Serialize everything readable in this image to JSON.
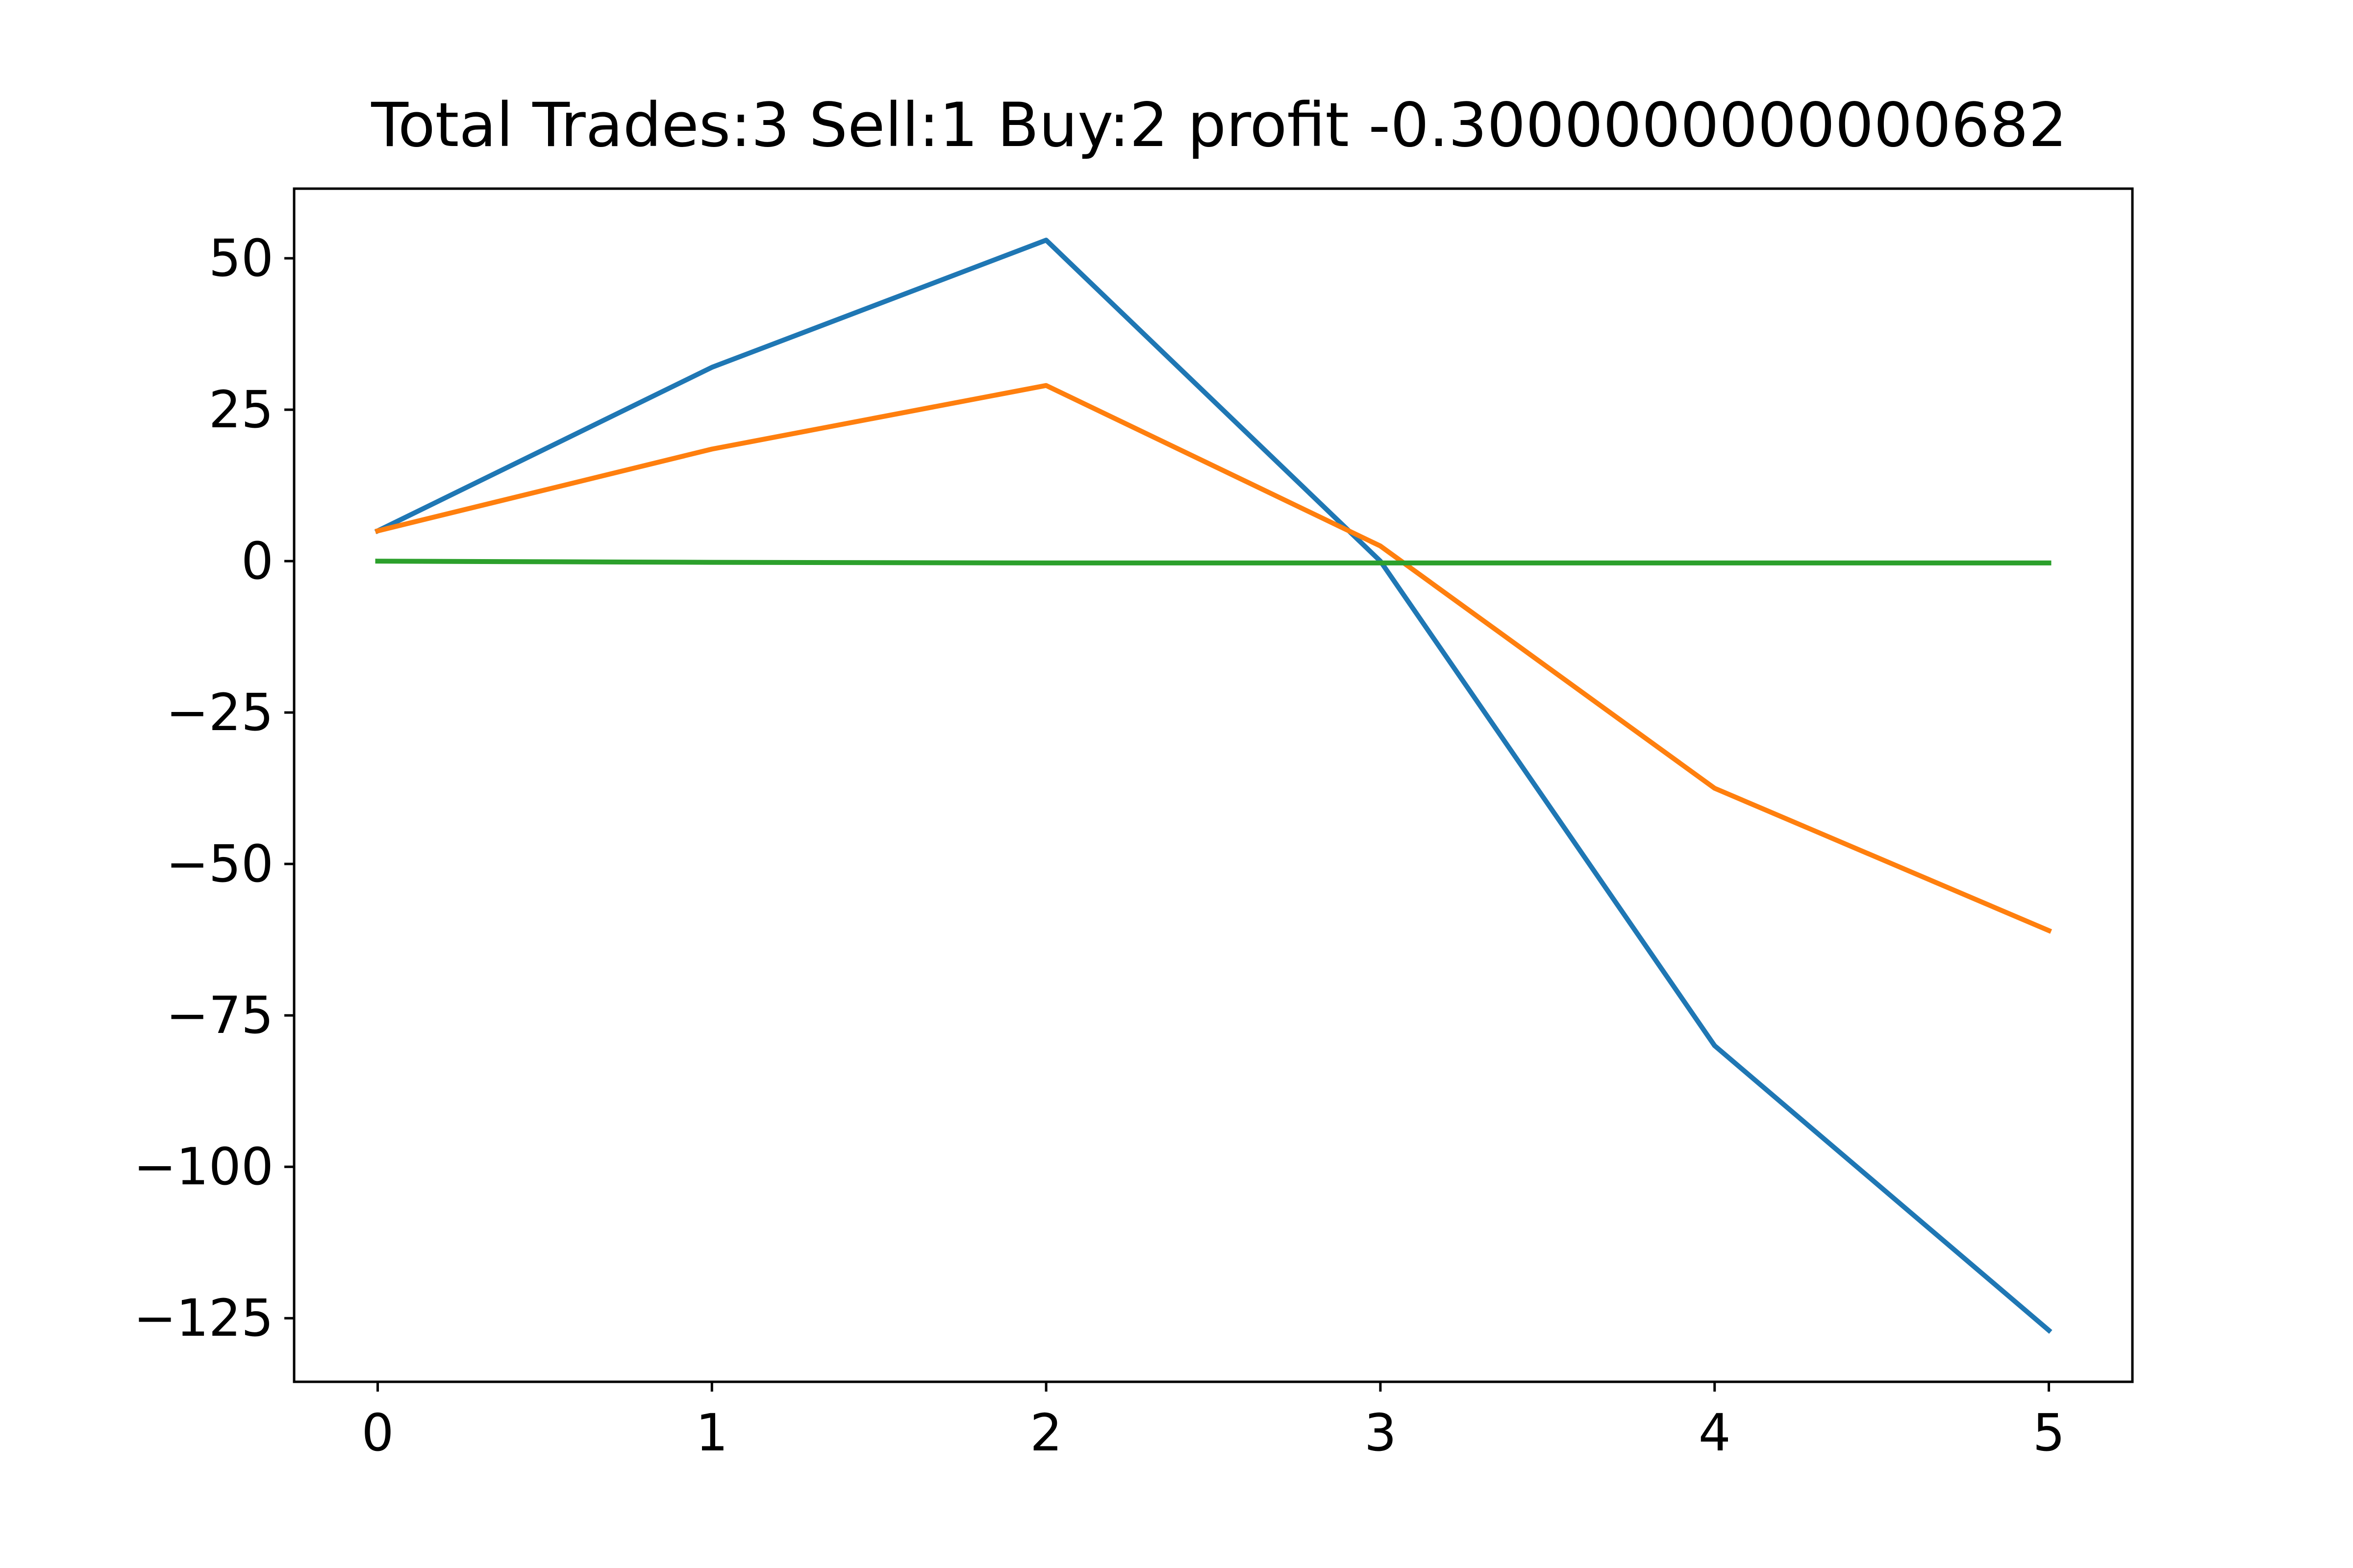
{
  "chart_data": {
    "type": "line",
    "title": "Total Trades:3 Sell:1 Buy:2 profit -0.3000000000000682",
    "xlabel": "",
    "ylabel": "",
    "x": [
      0,
      1,
      2,
      3,
      4,
      5
    ],
    "xlim": [
      -0.25,
      5.25
    ],
    "ylim": [
      -135.5,
      61.5
    ],
    "xticks": [
      0,
      1,
      2,
      3,
      4,
      5
    ],
    "xtick_labels": [
      "0",
      "1",
      "2",
      "3",
      "4",
      "5"
    ],
    "yticks": [
      50,
      25,
      0,
      -25,
      -50,
      -75,
      -100,
      -125
    ],
    "ytick_labels": [
      "50",
      "25",
      "0",
      "−25",
      "−50",
      "−75",
      "−100",
      "−125"
    ],
    "grid": false,
    "series": [
      {
        "color": "#1f77b4",
        "values": [
          5,
          32,
          53,
          0,
          -80,
          -127
        ]
      },
      {
        "color": "#ff7f0e",
        "values": [
          5,
          18.5,
          29,
          2.5,
          -37.5,
          -61
        ]
      },
      {
        "color": "#2ca02c",
        "values": [
          0,
          -0.2,
          -0.3,
          -0.3,
          -0.3,
          -0.3
        ]
      }
    ]
  }
}
